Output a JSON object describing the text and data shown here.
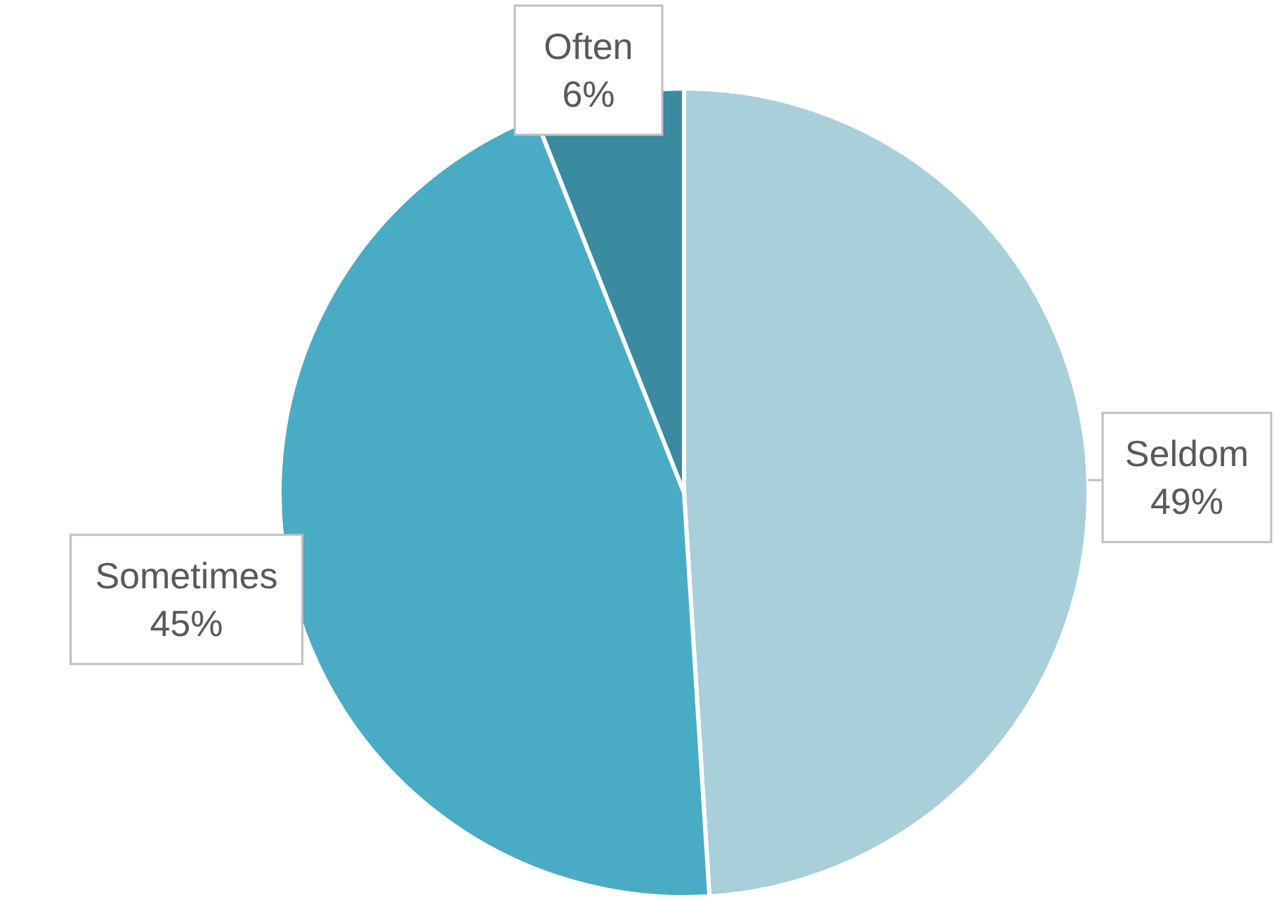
{
  "chart_data": {
    "type": "pie",
    "categories": [
      "Seldom",
      "Sometimes",
      "Often"
    ],
    "values": [
      49,
      45,
      6
    ],
    "colors": [
      "#a9cfdb",
      "#4aabc4",
      "#3a8aa0"
    ],
    "value_labels": [
      "49%",
      "45%",
      "6%"
    ]
  }
}
